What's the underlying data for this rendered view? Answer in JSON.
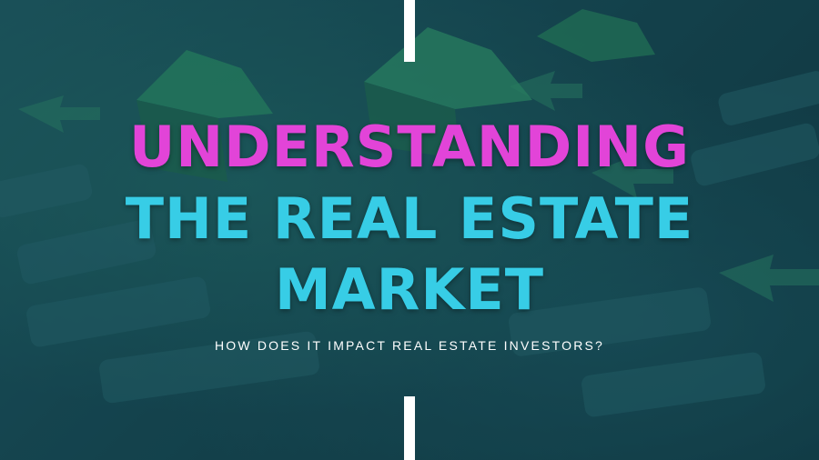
{
  "colors": {
    "accent_magenta": "#e244d8",
    "accent_cyan": "#37cde6",
    "subtitle": "#ffffff",
    "divider": "#ffffff",
    "background": "#174a55"
  },
  "headline": {
    "line1": "UNDERSTANDING",
    "line2": "THE REAL ESTATE",
    "line3": "MARKET"
  },
  "subtitle": "HOW DOES IT IMPACT REAL ESTATE INVESTORS?"
}
